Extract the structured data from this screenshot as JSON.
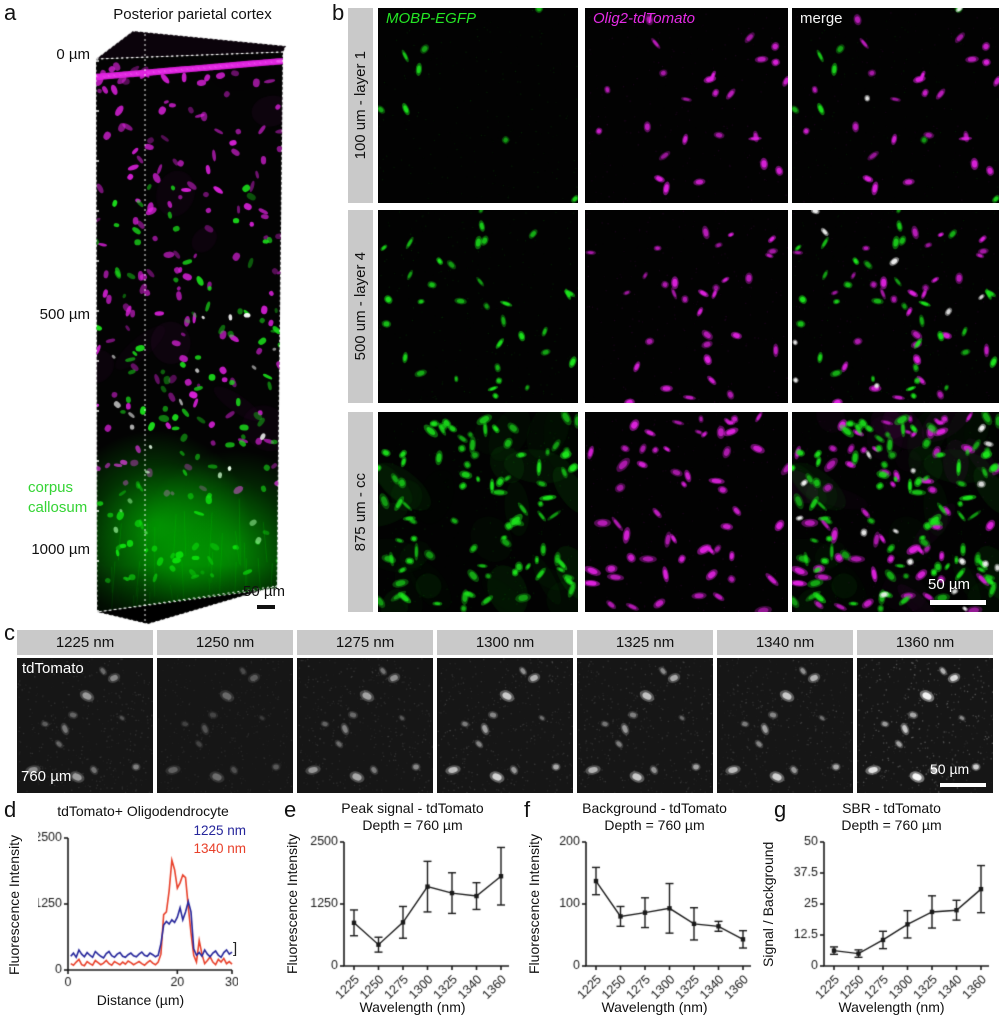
{
  "panel_a": {
    "label": "a",
    "title": "Posterior parietal cortex",
    "depth_labels": [
      "0 µm",
      "500 µm",
      "1000 µm"
    ],
    "region_label": "corpus\ncallosum",
    "scale_bar_label": "50 µm"
  },
  "panel_b": {
    "label": "b",
    "col_headers": [
      {
        "text": "MOBP-EGFP",
        "color": "#25e625"
      },
      {
        "text": "Olig2-tdTomato",
        "color": "#e62ce6"
      },
      {
        "text": "merge",
        "color": "#f5f5f5"
      }
    ],
    "row_labels": [
      "100 um - layer 1",
      "500 um - layer 4",
      "875 um - cc"
    ],
    "scale_bar_label": "50 µm"
  },
  "panel_c": {
    "label": "c",
    "wavelengths": [
      "1225 nm",
      "1250 nm",
      "1275 nm",
      "1300 nm",
      "1325 nm",
      "1340 nm",
      "1360 nm"
    ],
    "image_label_top": "tdTomato",
    "image_label_bottom": "760 µm",
    "scale_bar_label": "50 µm"
  },
  "panel_d": {
    "label": "d",
    "bracket": "]"
  },
  "panel_e": {
    "label": "e"
  },
  "panel_f": {
    "label": "f"
  },
  "panel_g": {
    "label": "g"
  },
  "chart_data": [
    {
      "id": "d",
      "type": "line",
      "title": "tdTomato+ Oligodendrocyte",
      "xlabel": "Distance (µm)",
      "ylabel": "Fluorescence Intensity",
      "xlim": [
        0,
        30
      ],
      "ylim": [
        0,
        2500
      ],
      "xticks": [
        0,
        20,
        30
      ],
      "yticks": [
        0,
        1250,
        2500
      ],
      "x_start": 0.5,
      "x_step": 0.5,
      "legend_position": "top-right",
      "series": [
        {
          "name": "1225 nm",
          "color": "#26269b",
          "y": [
            260,
            320,
            240,
            380,
            300,
            250,
            330,
            280,
            240,
            350,
            300,
            260,
            230,
            310,
            350,
            270,
            240,
            300,
            330,
            260,
            240,
            290,
            320,
            270,
            250,
            300,
            340,
            280,
            260,
            320,
            290,
            250,
            280,
            500,
            850,
            920,
            870,
            950,
            900,
            1000,
            1180,
            950,
            1100,
            1300,
            1100,
            400,
            280,
            330,
            260,
            380,
            300,
            250,
            320,
            360,
            280,
            240,
            330,
            380,
            300,
            340
          ]
        },
        {
          "name": "1340 nm",
          "color": "#e8402a",
          "y": [
            120,
            90,
            150,
            200,
            100,
            80,
            160,
            120,
            90,
            180,
            140,
            100,
            130,
            180,
            120,
            90,
            160,
            130,
            100,
            150,
            110,
            170,
            140,
            100,
            130,
            160,
            120,
            90,
            140,
            180,
            130,
            100,
            150,
            300,
            1050,
            1100,
            1500,
            2080,
            1900,
            1550,
            1650,
            1800,
            1750,
            1200,
            700,
            280,
            150,
            560,
            300,
            120,
            180,
            250,
            150,
            100,
            200,
            150,
            220,
            120,
            160,
            110
          ]
        }
      ]
    },
    {
      "id": "e",
      "type": "errorbar",
      "title": "Peak signal - tdTomato",
      "subtitle": "Depth = 760 µm",
      "xlabel": "Wavelength (nm)",
      "ylabel": "Fluorescence Intensity",
      "categories": [
        "1225",
        "1250",
        "1275",
        "1300",
        "1325",
        "1340",
        "1360"
      ],
      "values": [
        870,
        430,
        880,
        1600,
        1470,
        1410,
        1810
      ],
      "errors": [
        260,
        150,
        320,
        510,
        410,
        270,
        580
      ],
      "ylim": [
        0,
        2500
      ],
      "yticks": [
        0,
        1250,
        2500
      ]
    },
    {
      "id": "f",
      "type": "errorbar",
      "title": "Background - tdTomato",
      "subtitle": "Depth = 760 µm",
      "xlabel": "Wavelength (nm)",
      "ylabel": "Fluorescence Intensity",
      "categories": [
        "1225",
        "1250",
        "1275",
        "1300",
        "1325",
        "1340",
        "1360"
      ],
      "values": [
        137,
        80,
        86,
        93,
        68,
        64,
        43
      ],
      "errors": [
        22,
        16,
        24,
        40,
        26,
        8,
        14
      ],
      "ylim": [
        0,
        200
      ],
      "yticks": [
        0,
        100,
        200
      ]
    },
    {
      "id": "g",
      "type": "errorbar",
      "title": "SBR - tdTomato",
      "subtitle": "Depth = 760 µm",
      "xlabel": "Wavelength (nm)",
      "ylabel": "Signal / Background",
      "categories": [
        "1225",
        "1250",
        "1275",
        "1300",
        "1325",
        "1340",
        "1360"
      ],
      "values": [
        6.2,
        5.0,
        10.5,
        16.8,
        21.8,
        22.5,
        31.0
      ],
      "errors": [
        1.5,
        1.5,
        3.5,
        5.5,
        6.5,
        4.0,
        9.5
      ],
      "ylim": [
        0,
        50
      ],
      "yticks": [
        0,
        12.5,
        25,
        37.5,
        50
      ]
    }
  ],
  "micro": {
    "colors": {
      "green": "#1ce41c",
      "magenta": "#e022e0",
      "white": "#f0f0f0",
      "gray_bar": "#c9c9c9"
    },
    "b_rows": [
      {
        "green_n": 8,
        "magenta_n": 26,
        "white_n": 2,
        "haze": false
      },
      {
        "green_n": 34,
        "magenta_n": 32,
        "white_n": 8,
        "haze": false
      },
      {
        "green_n": 95,
        "magenta_n": 58,
        "white_n": 16,
        "haze": true
      }
    ],
    "c_frames": {
      "brightness": [
        0.5,
        0.3,
        0.55,
        0.75,
        0.7,
        0.75,
        1.0
      ],
      "noise": [
        0.5,
        0.35,
        0.5,
        0.55,
        0.55,
        0.55,
        1.0
      ]
    }
  }
}
